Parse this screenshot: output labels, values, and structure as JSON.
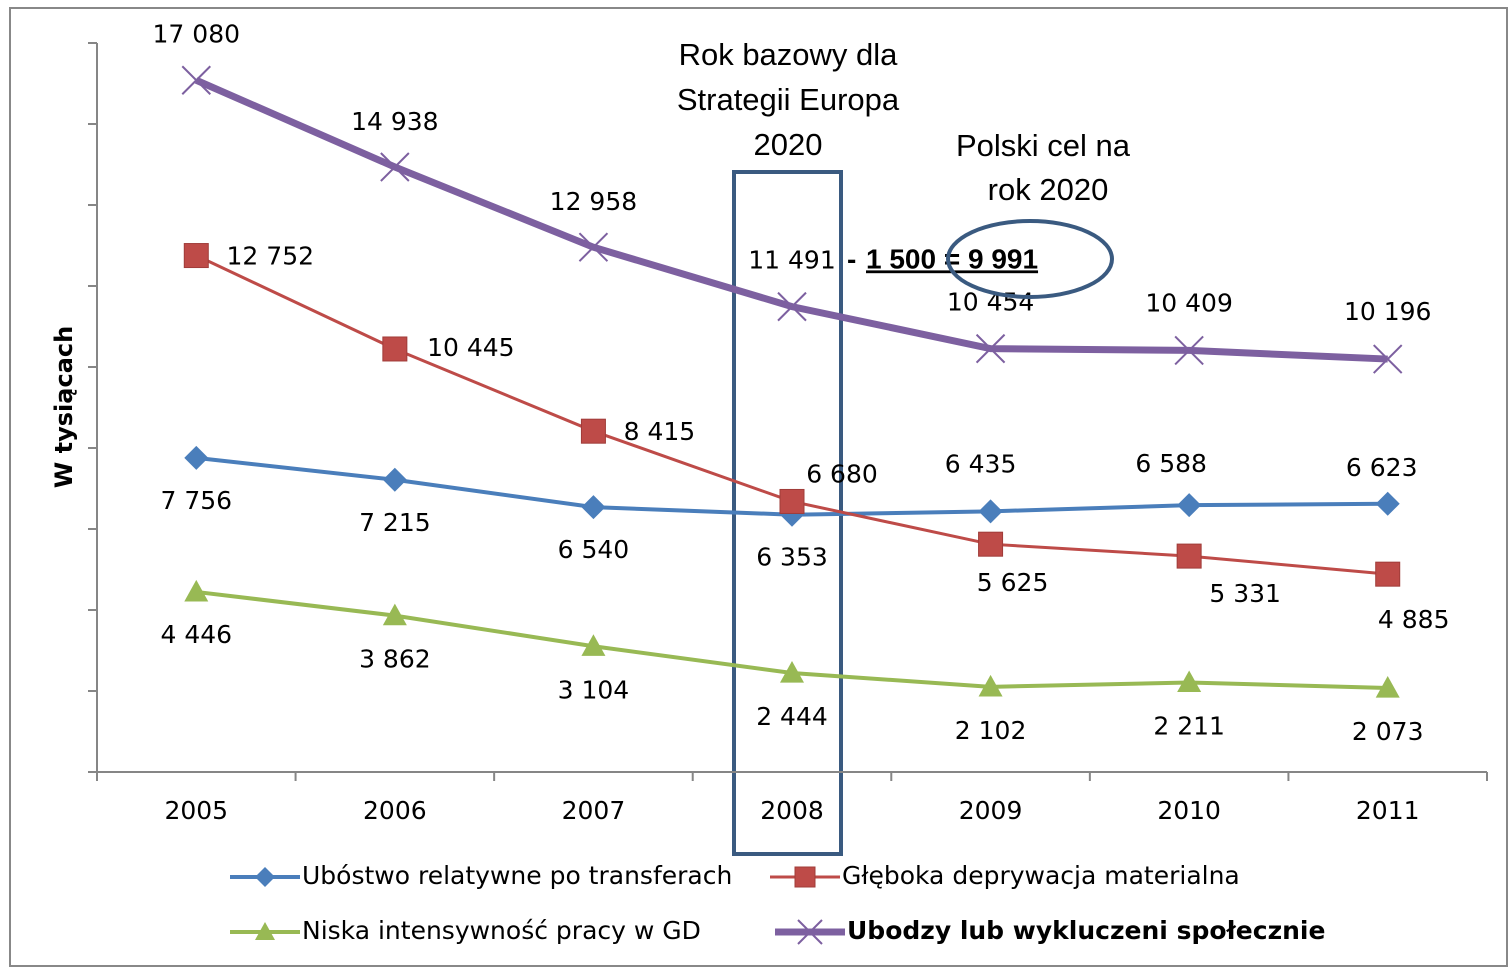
{
  "chart_data": {
    "type": "line",
    "y_label": "W tysiącach",
    "categories": [
      "2005",
      "2006",
      "2007",
      "2008",
      "2009",
      "2010",
      "2011"
    ],
    "series": [
      {
        "name": "Ubóstwo relatywne po transferach",
        "color": "#4a7ebb",
        "marker": "diamond",
        "values": [
          7756,
          7215,
          6540,
          6353,
          6435,
          6588,
          6623
        ],
        "value_labels": [
          "7 756",
          "7 215",
          "6 540",
          "6 353",
          "6 435",
          "6 588",
          "6 623"
        ]
      },
      {
        "name": "Głęboka deprywacja materialna",
        "color": "#be4b48",
        "marker": "square",
        "values": [
          12752,
          10445,
          8415,
          6680,
          5625,
          5331,
          4885
        ],
        "value_labels": [
          "12 752",
          "10 445",
          "8 415",
          "6 680",
          "5 625",
          "5 331",
          "4 885"
        ]
      },
      {
        "name": "Niska intensywność pracy w GD",
        "color": "#98b954",
        "marker": "triangle",
        "values": [
          4446,
          3862,
          3104,
          2444,
          2102,
          2211,
          2073
        ],
        "value_labels": [
          "4 446",
          "3 862",
          "3 104",
          "2 444",
          "2 102",
          "2 211",
          "2 073"
        ]
      },
      {
        "name": "Ubodzy lub wykluczeni społecznie",
        "color": "#7d60a0",
        "marker": "x",
        "values": [
          17080,
          14938,
          12958,
          11491,
          10454,
          10409,
          10196
        ],
        "value_labels": [
          "17 080",
          "14 938",
          "12 958",
          "11 491",
          "10 454",
          "10 409",
          "10 196"
        ]
      }
    ],
    "annotations": [
      "Rok bazowy dla",
      "Strategii Europa",
      "2020",
      "Polski cel na",
      "rok 2020",
      "-",
      "1 500 = 9 991"
    ],
    "ylim": [
      0,
      18000
    ],
    "yticks": [
      0,
      2000,
      4000,
      6000,
      8000,
      10000,
      12000,
      14000,
      16000,
      18000
    ],
    "legend": "bottom"
  }
}
